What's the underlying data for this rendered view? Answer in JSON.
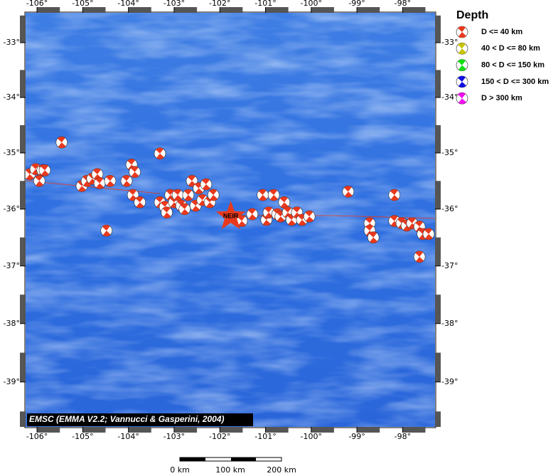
{
  "map": {
    "xlim": [
      -106.25,
      -97.29
    ],
    "ylim": [
      -39.76,
      -32.45
    ],
    "lon_ticks": [
      {
        "value": -106,
        "label": "-106°"
      },
      {
        "value": -105,
        "label": "-105°"
      },
      {
        "value": -104,
        "label": "-104°"
      },
      {
        "value": -103,
        "label": "-103°"
      },
      {
        "value": -102,
        "label": "-102°"
      },
      {
        "value": -101,
        "label": "-101°"
      },
      {
        "value": -100,
        "label": "-100°"
      },
      {
        "value": -99,
        "label": "-99°"
      },
      {
        "value": -98,
        "label": "-98°"
      }
    ],
    "lat_ticks": [
      {
        "value": -33,
        "label": "-33°"
      },
      {
        "value": -34,
        "label": "-34°"
      },
      {
        "value": -35,
        "label": "-35°"
      },
      {
        "value": -36,
        "label": "-36°"
      },
      {
        "value": -37,
        "label": "-37°"
      },
      {
        "value": -38,
        "label": "-38°"
      },
      {
        "value": -39,
        "label": "-39°"
      }
    ],
    "event_color": "#e8391d",
    "events": [
      {
        "lon": -106.16,
        "lat": -35.38
      },
      {
        "lon": -106.03,
        "lat": -35.29
      },
      {
        "lon": -105.88,
        "lat": -35.31
      },
      {
        "lon": -105.95,
        "lat": -35.5
      },
      {
        "lon": -105.83,
        "lat": -35.31
      },
      {
        "lon": -105.46,
        "lat": -34.81
      },
      {
        "lon": -105.02,
        "lat": -35.59
      },
      {
        "lon": -104.91,
        "lat": -35.5
      },
      {
        "lon": -104.79,
        "lat": -35.46
      },
      {
        "lon": -104.68,
        "lat": -35.38
      },
      {
        "lon": -104.63,
        "lat": -35.54
      },
      {
        "lon": -104.4,
        "lat": -35.5
      },
      {
        "lon": -104.48,
        "lat": -36.38
      },
      {
        "lon": -104.04,
        "lat": -35.5
      },
      {
        "lon": -103.93,
        "lat": -35.21
      },
      {
        "lon": -103.86,
        "lat": -35.34
      },
      {
        "lon": -103.9,
        "lat": -35.75
      },
      {
        "lon": -103.75,
        "lat": -35.88
      },
      {
        "lon": -103.31,
        "lat": -35.01
      },
      {
        "lon": -103.31,
        "lat": -35.88
      },
      {
        "lon": -103.2,
        "lat": -35.96
      },
      {
        "lon": -103.16,
        "lat": -36.06
      },
      {
        "lon": -103.08,
        "lat": -35.75
      },
      {
        "lon": -103.0,
        "lat": -35.88
      },
      {
        "lon": -102.92,
        "lat": -35.75
      },
      {
        "lon": -102.84,
        "lat": -35.94
      },
      {
        "lon": -102.77,
        "lat": -36.0
      },
      {
        "lon": -102.69,
        "lat": -35.75
      },
      {
        "lon": -102.61,
        "lat": -35.5
      },
      {
        "lon": -102.53,
        "lat": -35.94
      },
      {
        "lon": -102.46,
        "lat": -35.63
      },
      {
        "lon": -102.38,
        "lat": -35.84
      },
      {
        "lon": -102.3,
        "lat": -35.56
      },
      {
        "lon": -102.22,
        "lat": -35.88
      },
      {
        "lon": -102.14,
        "lat": -35.75
      },
      {
        "lon": -101.52,
        "lat": -36.21
      },
      {
        "lon": -101.29,
        "lat": -36.09
      },
      {
        "lon": -101.06,
        "lat": -35.75
      },
      {
        "lon": -100.98,
        "lat": -36.19
      },
      {
        "lon": -100.93,
        "lat": -36.06
      },
      {
        "lon": -100.82,
        "lat": -35.75
      },
      {
        "lon": -100.74,
        "lat": -36.09
      },
      {
        "lon": -100.67,
        "lat": -36.13
      },
      {
        "lon": -100.59,
        "lat": -35.88
      },
      {
        "lon": -100.51,
        "lat": -36.06
      },
      {
        "lon": -100.43,
        "lat": -36.19
      },
      {
        "lon": -100.31,
        "lat": -36.06
      },
      {
        "lon": -100.2,
        "lat": -36.19
      },
      {
        "lon": -100.04,
        "lat": -36.13
      },
      {
        "lon": -99.19,
        "lat": -35.69
      },
      {
        "lon": -98.72,
        "lat": -36.25
      },
      {
        "lon": -98.72,
        "lat": -36.38
      },
      {
        "lon": -98.64,
        "lat": -36.5
      },
      {
        "lon": -98.18,
        "lat": -35.75
      },
      {
        "lon": -98.18,
        "lat": -36.21
      },
      {
        "lon": -98.02,
        "lat": -36.25
      },
      {
        "lon": -97.91,
        "lat": -36.29
      },
      {
        "lon": -97.79,
        "lat": -36.25
      },
      {
        "lon": -97.63,
        "lat": -36.31
      },
      {
        "lon": -97.56,
        "lat": -36.44
      },
      {
        "lon": -97.43,
        "lat": -36.44
      },
      {
        "lon": -97.63,
        "lat": -36.84
      }
    ],
    "station": {
      "label": "NEIR",
      "lon": -101.76,
      "lat": -36.13,
      "color": "#e8391d"
    },
    "credit": "EMSC (EMMA V2.2; Vannucci & Gasperini, 2004)",
    "scale_bar": {
      "labels": [
        "0 km",
        "100 km",
        "200 km"
      ]
    }
  },
  "legend": {
    "title": "Depth",
    "items": [
      {
        "label": "D <= 40 km",
        "color": "#e8391d"
      },
      {
        "label": "40 < D <= 80 km",
        "color": "#c8c400"
      },
      {
        "label": "80 < D <= 150 km",
        "color": "#10e010"
      },
      {
        "label": "150 < D <= 300 km",
        "color": "#1010e0"
      },
      {
        "label": "D > 300 km",
        "color": "#f010f0"
      }
    ]
  }
}
